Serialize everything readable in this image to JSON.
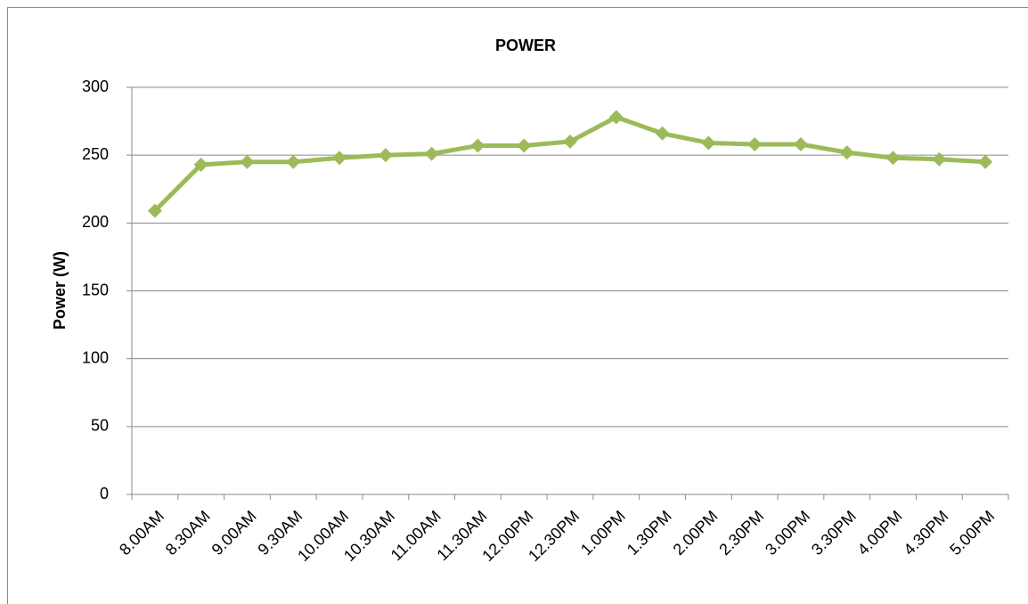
{
  "chart_data": {
    "type": "line",
    "title": "POWER",
    "y_label": "Power (W)",
    "categories": [
      "8.00AM",
      "8.30AM",
      "9.00AM",
      "9.30AM",
      "10.00AM",
      "10.30AM",
      "11.00AM",
      "11.30AM",
      "12.00PM",
      "12.30PM",
      "1.00PM",
      "1.30PM",
      "2.00PM",
      "2.30PM",
      "3.00PM",
      "3.30PM",
      "4.00PM",
      "4.30PM",
      "5.00PM"
    ],
    "series": [
      {
        "name": "Power",
        "color": "#9bbb59",
        "values": [
          209,
          243,
          245,
          245,
          248,
          250,
          251,
          257,
          257,
          260,
          278,
          266,
          259,
          258,
          258,
          252,
          248,
          247,
          245
        ]
      }
    ],
    "ylim": [
      0,
      300
    ],
    "yticks": [
      0,
      50,
      100,
      150,
      200,
      250,
      300
    ],
    "grid": true
  }
}
